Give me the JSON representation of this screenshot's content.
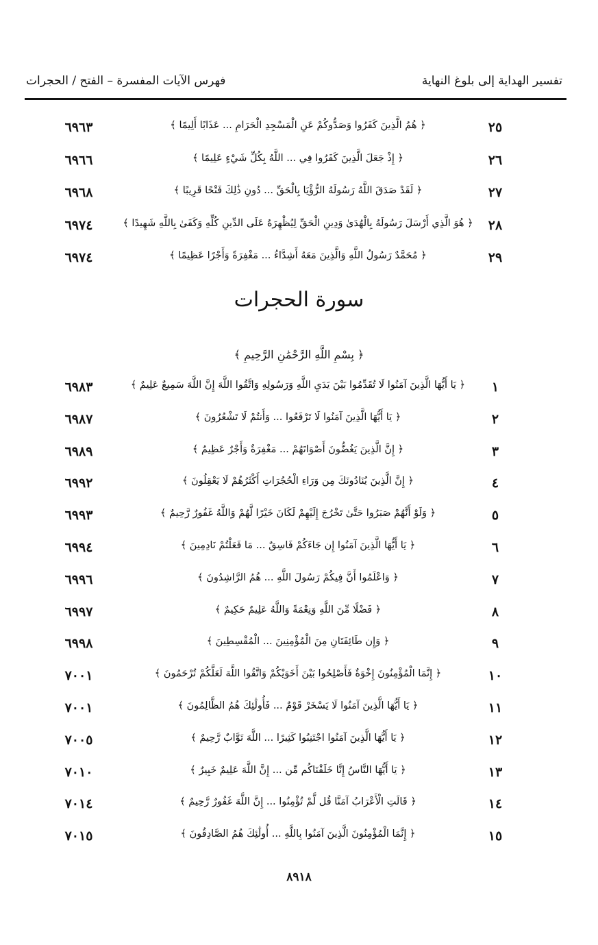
{
  "header": {
    "right_title": "تفسير الهداية إلى بلوغ النهاية",
    "left_title": "فهرس الآيات المفسرة – الفتح / الحجرات"
  },
  "section1": {
    "rows": [
      {
        "num": "٢٥",
        "verse": "﴿ هُمُ الَّذِينَ كَفَرُوا وَصَدُّوكُمْ عَنِ الْمَسْجِدِ الْحَرَامِ ... عَذَابًا أَلِيمًا ﴾",
        "page": "٦٩٦٣"
      },
      {
        "num": "٢٦",
        "verse": "﴿ إِذْ جَعَلَ الَّذِينَ كَفَرُوا فِي ... اللَّهُ بِكُلِّ شَيْءٍ عَلِيمًا ﴾",
        "page": "٦٩٦٦"
      },
      {
        "num": "٢٧",
        "verse": "﴿ لَقَدْ صَدَقَ اللَّهُ رَسُولَهُ الرُّؤْيَا بِالْحَقِّ ... دُونِ ذَٰلِكَ فَتْحًا قَرِيبًا ﴾",
        "page": "٦٩٦٨"
      },
      {
        "num": "٢٨",
        "verse": "﴿ هُوَ الَّذِي أَرْسَلَ رَسُولَهُ بِالْهُدَىٰ وَدِينِ الْحَقِّ لِيُظْهِرَهُ عَلَى الدِّينِ كُلِّهِ وَكَفَىٰ بِاللَّهِ شَهِيدًا ﴾",
        "page": "٦٩٧٤"
      },
      {
        "num": "٢٩",
        "verse": "﴿ مُحَمَّدٌ رَسُولُ اللَّهِ وَالَّذِينَ مَعَهُ أَشِدَّاءُ ... مَغْفِرَةً وَأَجْرًا عَظِيمًا ﴾",
        "page": "٦٩٧٤"
      }
    ]
  },
  "surah_title": "سورة الحجرات",
  "basmala": "﴿ بِسْمِ اللَّهِ الرَّحْمَٰنِ الرَّحِيمِ ﴾",
  "section2": {
    "rows": [
      {
        "num": "١",
        "verse": "﴿ يَا أَيُّهَا الَّذِينَ آمَنُوا لَا تُقَدِّمُوا بَيْنَ يَدَيِ اللَّهِ وَرَسُولِهِ وَاتَّقُوا اللَّهَ إِنَّ اللَّهَ سَمِيعٌ عَلِيمٌ ﴾",
        "page": "٦٩٨٣"
      },
      {
        "num": "٢",
        "verse": "﴿ يَا أَيُّهَا الَّذِينَ آمَنُوا لَا تَرْفَعُوا ... وَأَنتُمْ لَا تَشْعُرُونَ ﴾",
        "page": "٦٩٨٧"
      },
      {
        "num": "٣",
        "verse": "﴿ إِنَّ الَّذِينَ يَغُضُّونَ أَصْوَاتَهُمْ ... مَغْفِرَةٌ وَأَجْرٌ عَظِيمٌ ﴾",
        "page": "٦٩٨٩"
      },
      {
        "num": "٤",
        "verse": "﴿ إِنَّ الَّذِينَ يُنَادُونَكَ مِن وَرَاءِ الْحُجُرَاتِ أَكْثَرُهُمْ لَا يَعْقِلُونَ ﴾",
        "page": "٦٩٩٢"
      },
      {
        "num": "٥",
        "verse": "﴿ وَلَوْ أَنَّهُمْ صَبَرُوا حَتَّىٰ تَخْرُجَ إِلَيْهِمْ لَكَانَ خَيْرًا لَّهُمْ وَاللَّهُ غَفُورٌ رَّحِيمٌ ﴾",
        "page": "٦٩٩٣"
      },
      {
        "num": "٦",
        "verse": "﴿ يَا أَيُّهَا الَّذِينَ آمَنُوا إِن جَاءَكُمْ فَاسِقٌ ... مَا فَعَلْتُمْ نَادِمِينَ ﴾",
        "page": "٦٩٩٤"
      },
      {
        "num": "٧",
        "verse": "﴿ وَاعْلَمُوا أَنَّ فِيكُمْ رَسُولَ اللَّهِ ... هُمُ الرَّاشِدُونَ ﴾",
        "page": "٦٩٩٦"
      },
      {
        "num": "٨",
        "verse": "﴿ فَضْلًا مِّنَ اللَّهِ وَنِعْمَةً وَاللَّهُ عَلِيمٌ حَكِيمٌ ﴾",
        "page": "٦٩٩٧"
      },
      {
        "num": "٩",
        "verse": "﴿ وَإِن طَائِفَتَانِ مِنَ الْمُؤْمِنِينَ ... الْمُقْسِطِينَ ﴾",
        "page": "٦٩٩٨"
      },
      {
        "num": "١٠",
        "verse": "﴿ إِنَّمَا الْمُؤْمِنُونَ إِخْوَةٌ فَأَصْلِحُوا بَيْنَ أَخَوَيْكُمْ وَاتَّقُوا اللَّهَ لَعَلَّكُمْ تُرْحَمُونَ ﴾",
        "page": "٧٠٠١"
      },
      {
        "num": "١١",
        "verse": "﴿ يَا أَيُّهَا الَّذِينَ آمَنُوا لَا يَسْخَرْ قَوْمٌ ... فَأُولَٰئِكَ هُمُ الظَّالِمُونَ ﴾",
        "page": "٧٠٠١"
      },
      {
        "num": "١٢",
        "verse": "﴿ يَا أَيُّهَا الَّذِينَ آمَنُوا اجْتَنِبُوا كَثِيرًا ... اللَّهَ تَوَّابٌ رَّحِيمٌ ﴾",
        "page": "٧٠٠٥"
      },
      {
        "num": "١٣",
        "verse": "﴿ يَا أَيُّهَا النَّاسُ إِنَّا خَلَقْنَاكُم مِّن ... إِنَّ اللَّهَ عَلِيمٌ خَبِيرٌ ﴾",
        "page": "٧٠١٠"
      },
      {
        "num": "١٤",
        "verse": "﴿ قَالَتِ الْأَعْرَابُ آمَنَّا قُل لَّمْ تُؤْمِنُوا ... إِنَّ اللَّهَ غَفُورٌ رَّحِيمٌ ﴾",
        "page": "٧٠١٤"
      },
      {
        "num": "١٥",
        "verse": "﴿ إِنَّمَا الْمُؤْمِنُونَ الَّذِينَ آمَنُوا بِاللَّهِ ... أُولَٰئِكَ هُمُ الصَّادِقُونَ ﴾",
        "page": "٧٠١٥"
      }
    ]
  },
  "footer": {
    "page_number": "٨٩١٨"
  }
}
